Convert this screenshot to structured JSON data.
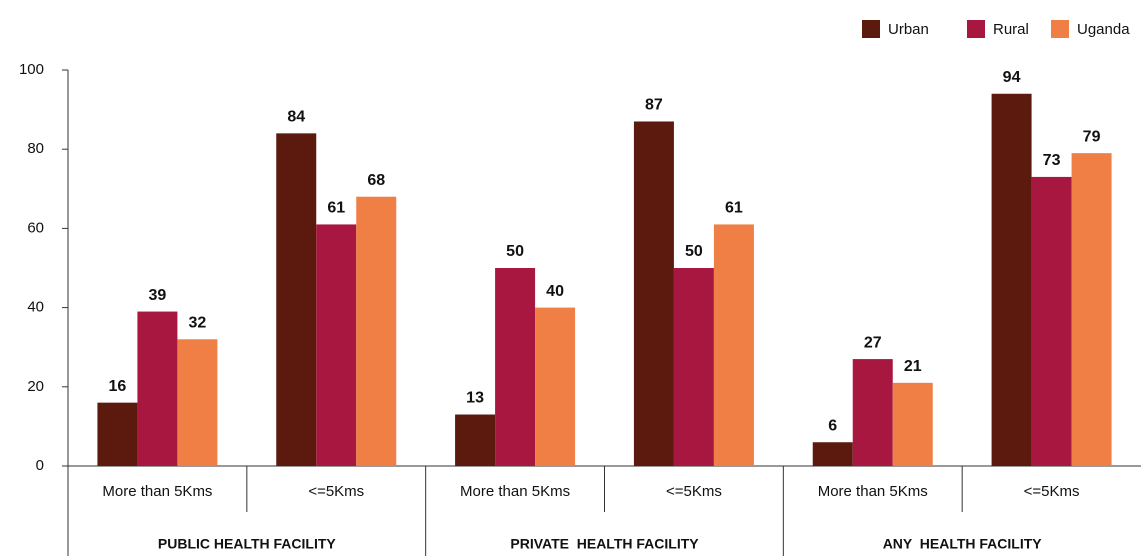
{
  "chart_data": {
    "type": "bar",
    "categories": [
      "More than 5Kms",
      "<=5Kms",
      "More than 5Kms",
      "<=5Kms",
      "More than 5Kms",
      "<=5Kms"
    ],
    "groups": [
      "PUBLIC HEALTH FACILITY",
      "PRIVATE  HEALTH FACILITY",
      "ANY  HEALTH FACILITY"
    ],
    "series": [
      {
        "name": "Urban",
        "color": "#5c1a0f",
        "values": [
          16,
          84,
          13,
          87,
          6,
          94
        ]
      },
      {
        "name": "Rural",
        "color": "#a8173f",
        "values": [
          39,
          61,
          50,
          50,
          27,
          73
        ]
      },
      {
        "name": "Uganda",
        "color": "#ef7f45",
        "values": [
          32,
          68,
          40,
          61,
          21,
          79
        ]
      }
    ],
    "ylim": [
      0,
      100
    ],
    "yticks": [
      0,
      20,
      40,
      60,
      80,
      100
    ],
    "grid": false,
    "legend": "top-right"
  }
}
